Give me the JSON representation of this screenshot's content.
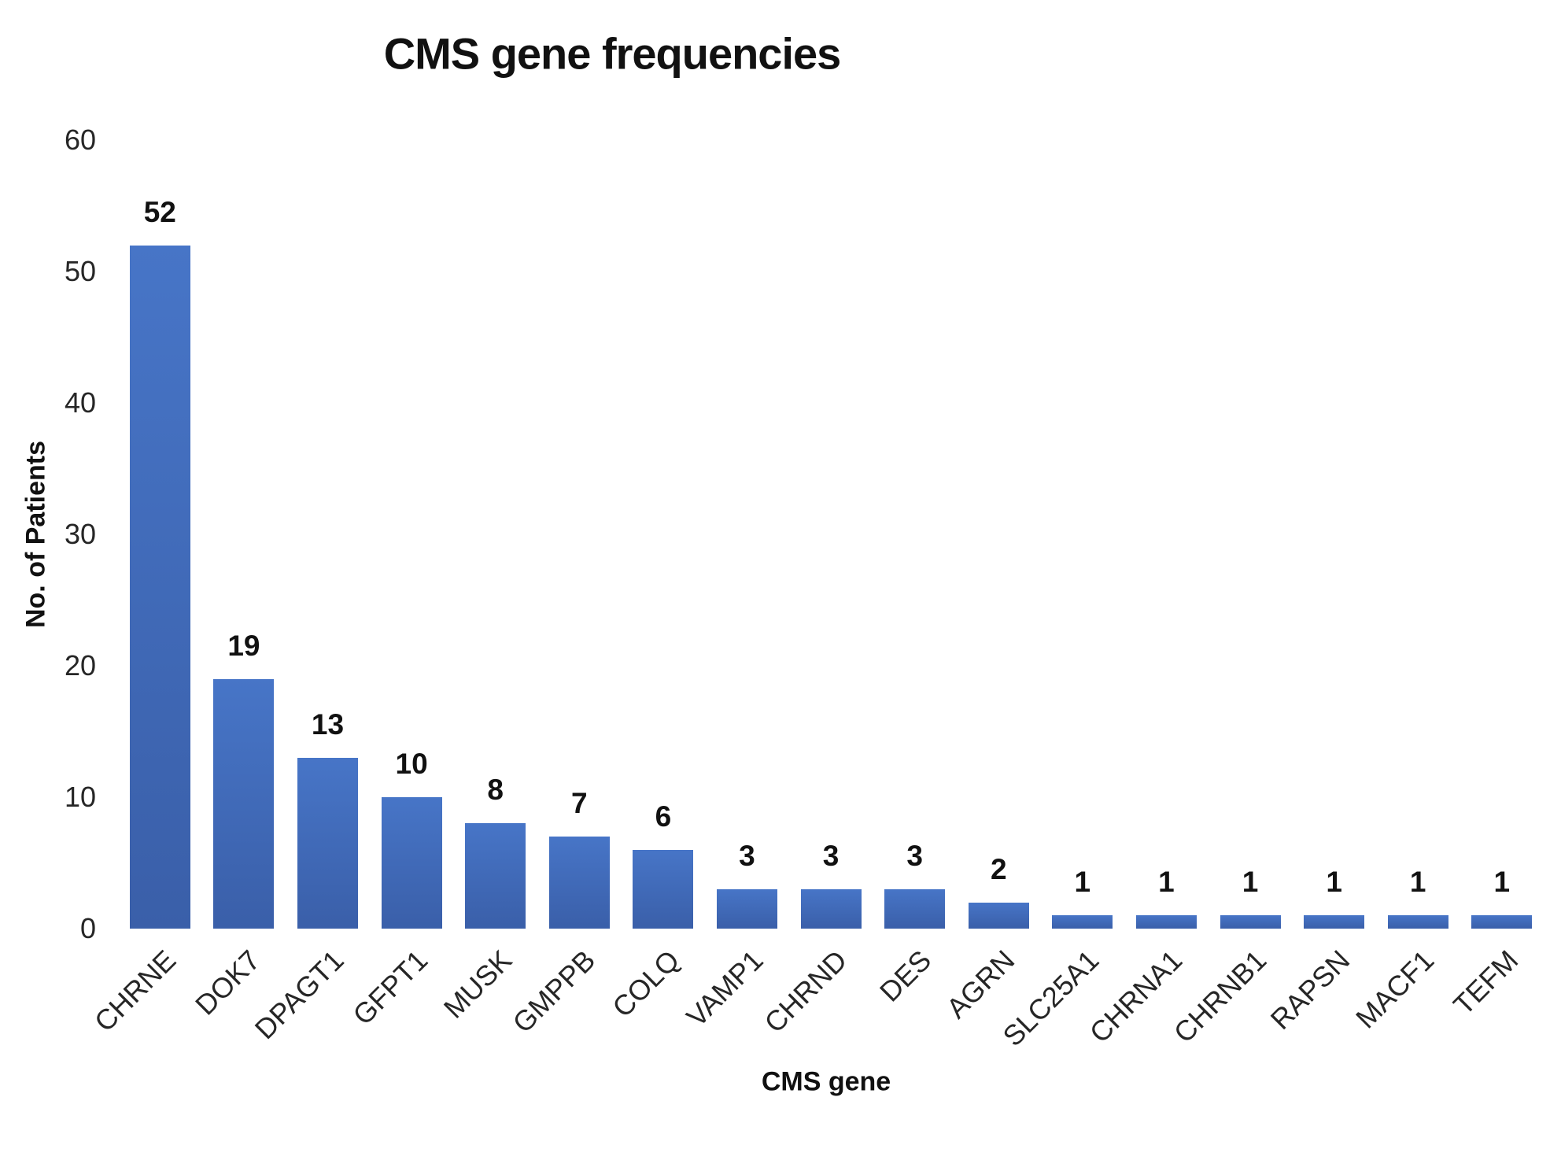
{
  "chart_data": {
    "type": "bar",
    "title": "CMS gene frequencies",
    "xlabel": "CMS gene",
    "ylabel": "No. of Patients",
    "categories": [
      "CHRNE",
      "DOK7",
      "DPAGT1",
      "GFPT1",
      "MUSK",
      "GMPPB",
      "COLQ",
      "VAMP1",
      "CHRND",
      "DES",
      "AGRN",
      "SLC25A1",
      "CHRNA1",
      "CHRNB1",
      "RAPSN",
      "MACF1",
      "TEFM"
    ],
    "values": [
      52,
      19,
      13,
      10,
      8,
      7,
      6,
      3,
      3,
      3,
      2,
      1,
      1,
      1,
      1,
      1,
      1
    ],
    "data_labels": [
      52,
      19,
      13,
      10,
      8,
      7,
      6,
      3,
      3,
      3,
      2,
      1,
      1,
      1,
      1,
      1,
      1
    ],
    "ylim": [
      0,
      60
    ],
    "yticks": [
      0,
      10,
      20,
      30,
      40,
      50,
      60
    ],
    "grid": false,
    "legend_position": "none",
    "x_label_rotation_deg": 45,
    "bar_color_top": "#4775C7",
    "bar_color_bottom": "#3A5FA9",
    "background_color": "#FFFFFF",
    "text_color": "#111111"
  }
}
